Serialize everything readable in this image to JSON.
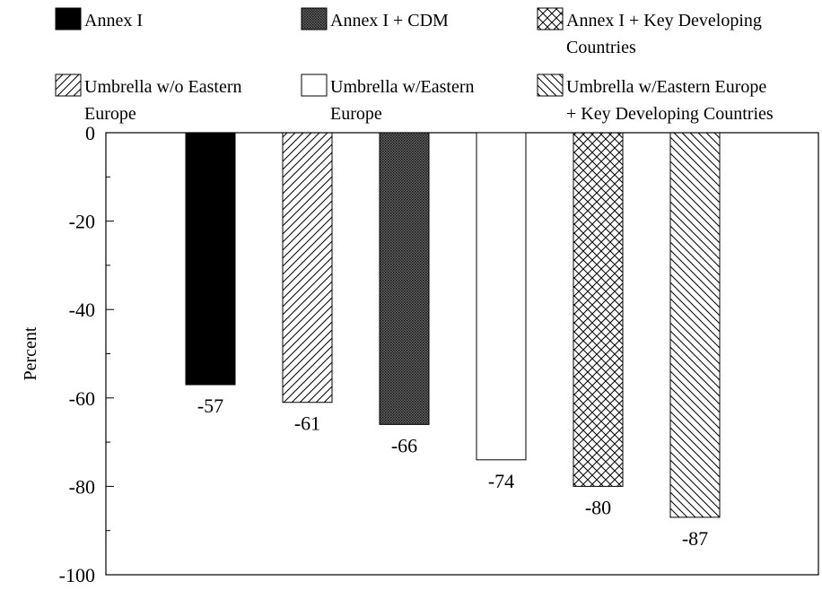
{
  "chart_data": {
    "type": "bar",
    "title": "",
    "xlabel": "",
    "ylabel": "Percent",
    "ylim": [
      -100,
      0
    ],
    "yticks": [
      0,
      -20,
      -40,
      -60,
      -80,
      -100
    ],
    "grid": false,
    "legend_position": "top",
    "series": [
      {
        "name": "Annex I",
        "value": -57,
        "label": "-57",
        "pattern": "solid-black"
      },
      {
        "name": "Umbrella w/o Eastern Europe",
        "value": -61,
        "label": "-61",
        "pattern": "diagonal-forward"
      },
      {
        "name": "Annex I + CDM",
        "value": -66,
        "label": "-66",
        "pattern": "dense-dots"
      },
      {
        "name": "Umbrella w/Eastern Europe",
        "value": -74,
        "label": "-74",
        "pattern": "white"
      },
      {
        "name": "Annex I + Key Developing Countries",
        "value": -80,
        "label": "-80",
        "pattern": "crosshatch"
      },
      {
        "name": "Umbrella w/Eastern Europe + Key Developing Countries",
        "value": -87,
        "label": "-87",
        "pattern": "diagonal-backward"
      }
    ],
    "legend": [
      {
        "lines": [
          "Annex I"
        ],
        "pattern": "solid-black"
      },
      {
        "lines": [
          "Annex I + CDM"
        ],
        "pattern": "dense-dots"
      },
      {
        "lines": [
          "Annex I + Key Developing",
          "Countries"
        ],
        "pattern": "crosshatch"
      },
      {
        "lines": [
          "Umbrella w/o Eastern",
          "Europe"
        ],
        "pattern": "diagonal-forward"
      },
      {
        "lines": [
          "Umbrella w/Eastern",
          "Europe"
        ],
        "pattern": "white"
      },
      {
        "lines": [
          "Umbrella w/Eastern Europe",
          "+ Key Developing Countries"
        ],
        "pattern": "diagonal-backward"
      }
    ],
    "colors": {
      "ink": "#000000",
      "background": "#ffffff"
    }
  }
}
